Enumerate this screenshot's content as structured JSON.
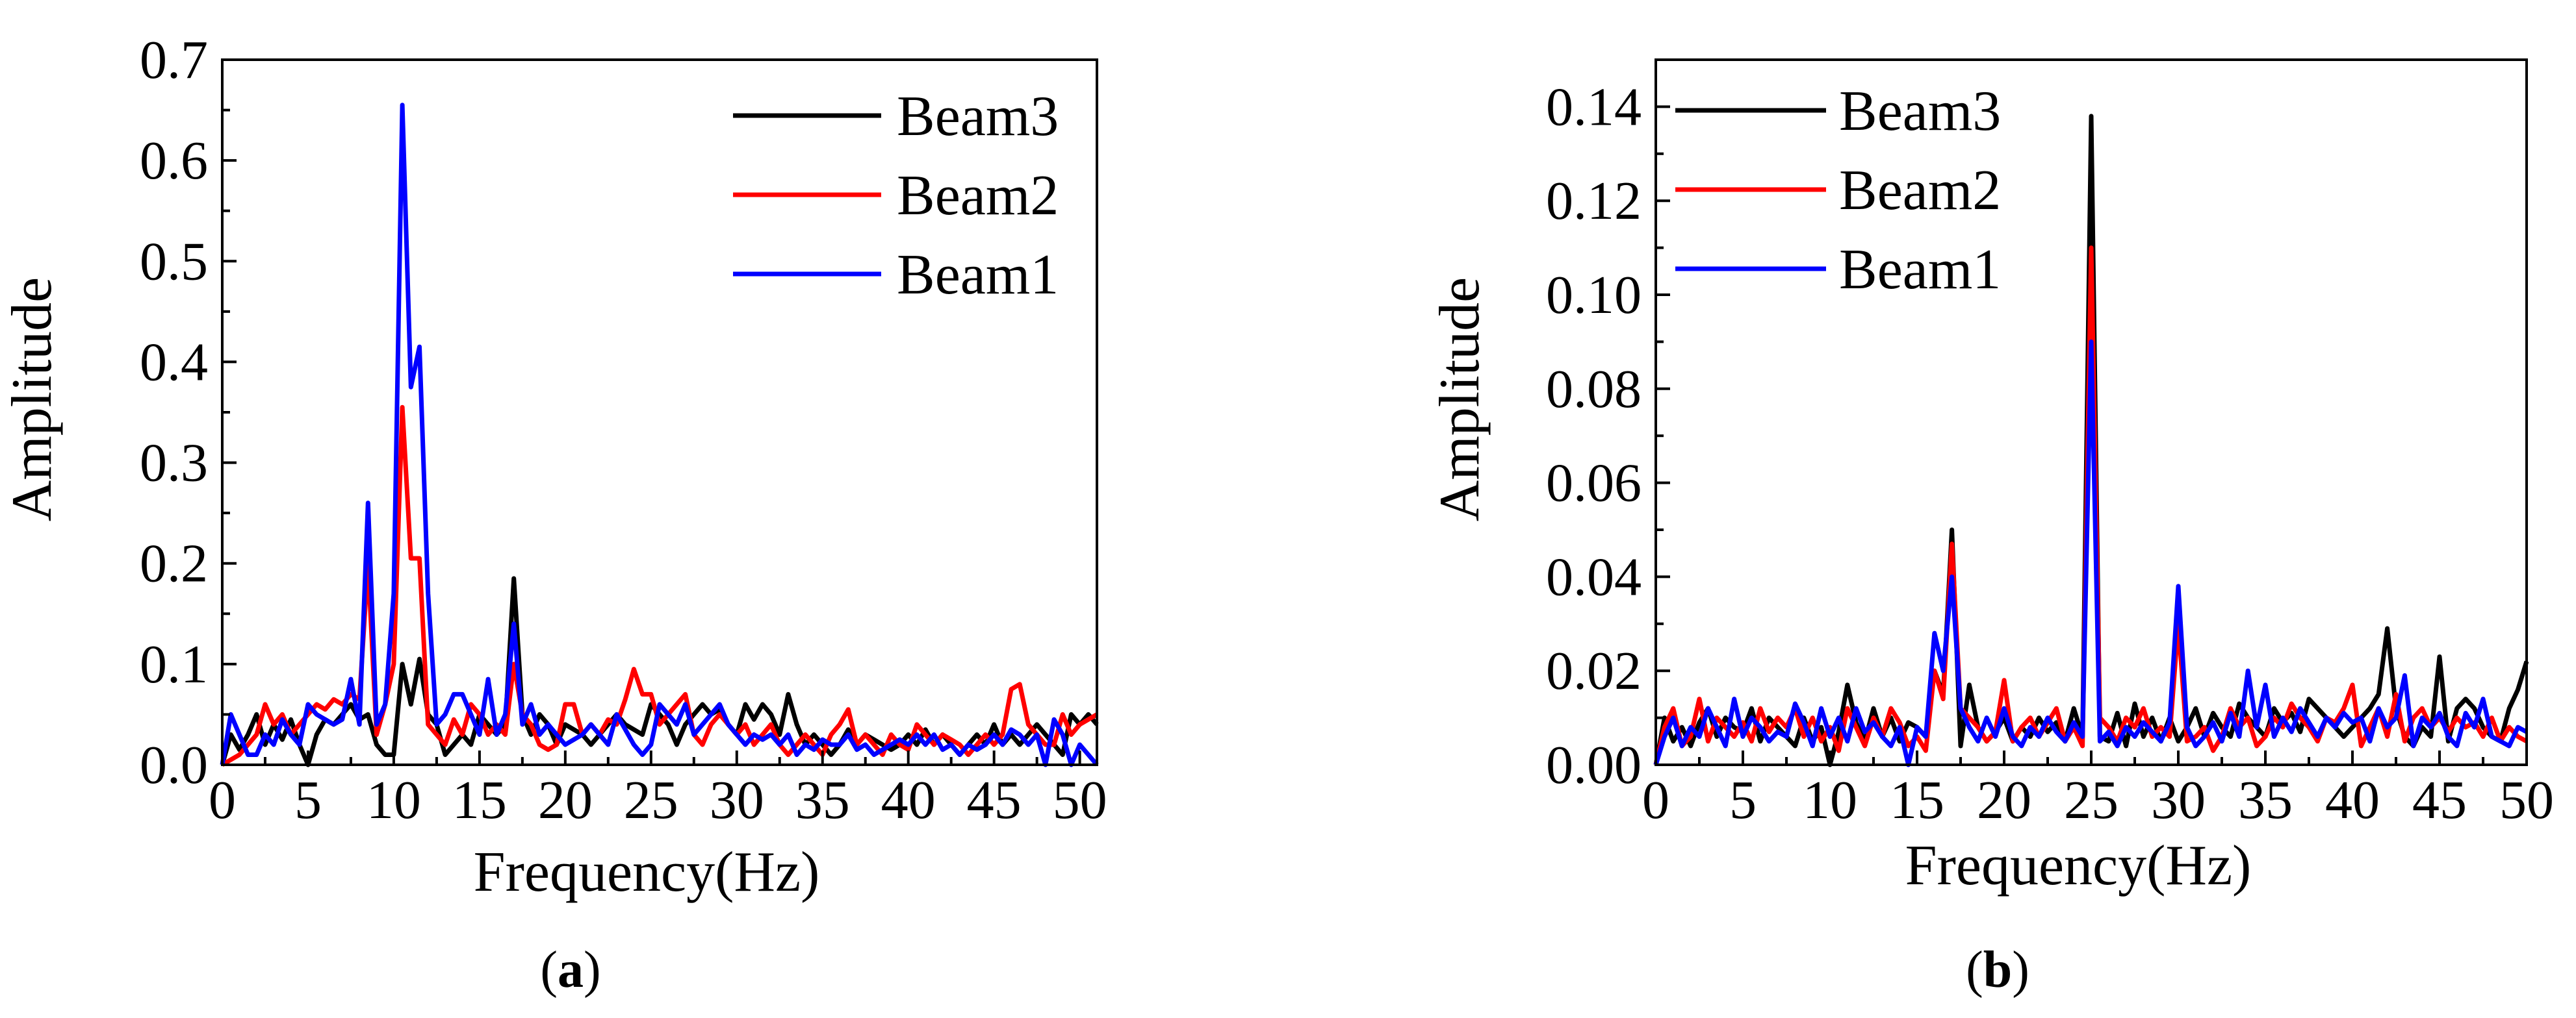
{
  "figure": {
    "panels": [
      {
        "caption_open": "(",
        "caption_letter": "a",
        "caption_close": ")"
      },
      {
        "caption_open": "(",
        "caption_letter": "b",
        "caption_close": ")"
      }
    ]
  },
  "chart_data": [
    {
      "type": "line",
      "panel": "a",
      "xlabel": "Frequency(Hz)",
      "ylabel": "Amplitude",
      "xlim": [
        0,
        51
      ],
      "ylim": [
        0,
        0.7
      ],
      "xticks": [
        0,
        5,
        10,
        15,
        20,
        25,
        30,
        35,
        40,
        45,
        50
      ],
      "yticks": [
        0.0,
        0.1,
        0.2,
        0.3,
        0.4,
        0.5,
        0.6,
        0.7
      ],
      "ytick_labels": [
        "0.0",
        "0.1",
        "0.2",
        "0.3",
        "0.4",
        "0.5",
        "0.6",
        "0.7"
      ],
      "legend_position": "top-right",
      "x": [
        0,
        0.5,
        1,
        1.5,
        2,
        2.5,
        3,
        3.5,
        4,
        4.5,
        5,
        5.5,
        6,
        6.5,
        7,
        7.5,
        8,
        8.5,
        9,
        9.5,
        10,
        10.5,
        11,
        11.5,
        12,
        12.5,
        13,
        13.5,
        14,
        14.5,
        15,
        15.5,
        16,
        16.5,
        17,
        17.5,
        18,
        18.5,
        19,
        19.5,
        20,
        20.5,
        21,
        21.5,
        22,
        22.5,
        23,
        23.5,
        24,
        24.5,
        25,
        25.5,
        26,
        26.5,
        27,
        27.5,
        28,
        28.5,
        29,
        29.5,
        30,
        30.5,
        31,
        31.5,
        32,
        32.5,
        33,
        33.5,
        34,
        34.5,
        35,
        35.5,
        36,
        36.5,
        37,
        37.5,
        38,
        38.5,
        39,
        39.5,
        40,
        40.5,
        41,
        41.5,
        42,
        42.5,
        43,
        43.5,
        44,
        44.5,
        45,
        45.5,
        46,
        46.5,
        47,
        47.5,
        48,
        48.5,
        49,
        49.5,
        50,
        50.5,
        51
      ],
      "series": [
        {
          "name": "Beam3",
          "color": "#000000",
          "values": [
            0.0,
            0.03,
            0.015,
            0.03,
            0.05,
            0.02,
            0.04,
            0.025,
            0.045,
            0.02,
            0.0,
            0.03,
            0.045,
            0.04,
            0.05,
            0.06,
            0.045,
            0.05,
            0.02,
            0.01,
            0.01,
            0.1,
            0.06,
            0.105,
            0.05,
            0.04,
            0.01,
            0.02,
            0.03,
            0.02,
            0.05,
            0.04,
            0.03,
            0.04,
            0.185,
            0.05,
            0.03,
            0.05,
            0.04,
            0.02,
            0.04,
            0.035,
            0.03,
            0.02,
            0.03,
            0.04,
            0.05,
            0.04,
            0.035,
            0.03,
            0.06,
            0.05,
            0.04,
            0.02,
            0.04,
            0.05,
            0.06,
            0.05,
            0.055,
            0.04,
            0.03,
            0.06,
            0.045,
            0.06,
            0.05,
            0.03,
            0.07,
            0.04,
            0.02,
            0.03,
            0.02,
            0.01,
            0.02,
            0.035,
            0.02,
            0.03,
            0.025,
            0.02,
            0.015,
            0.02,
            0.03,
            0.02,
            0.035,
            0.02,
            0.03,
            0.02,
            0.01,
            0.02,
            0.03,
            0.02,
            0.04,
            0.02,
            0.03,
            0.02,
            0.03,
            0.04,
            0.03,
            0.02,
            0.01,
            0.05,
            0.04,
            0.05,
            0.04
          ]
        },
        {
          "name": "Beam2",
          "color": "#ff0000",
          "values": [
            0.0,
            0.005,
            0.01,
            0.02,
            0.03,
            0.06,
            0.04,
            0.05,
            0.03,
            0.04,
            0.05,
            0.06,
            0.055,
            0.065,
            0.06,
            0.07,
            0.065,
            0.2,
            0.03,
            0.06,
            0.1,
            0.355,
            0.205,
            0.205,
            0.04,
            0.03,
            0.02,
            0.045,
            0.03,
            0.06,
            0.05,
            0.03,
            0.04,
            0.03,
            0.1,
            0.05,
            0.04,
            0.02,
            0.015,
            0.02,
            0.06,
            0.06,
            0.03,
            0.04,
            0.03,
            0.045,
            0.04,
            0.065,
            0.095,
            0.07,
            0.07,
            0.04,
            0.05,
            0.06,
            0.07,
            0.03,
            0.02,
            0.04,
            0.05,
            0.04,
            0.03,
            0.04,
            0.02,
            0.03,
            0.04,
            0.02,
            0.01,
            0.02,
            0.03,
            0.02,
            0.01,
            0.03,
            0.04,
            0.055,
            0.02,
            0.03,
            0.02,
            0.01,
            0.03,
            0.02,
            0.015,
            0.04,
            0.03,
            0.02,
            0.03,
            0.025,
            0.02,
            0.01,
            0.02,
            0.03,
            0.02,
            0.03,
            0.075,
            0.08,
            0.04,
            0.03,
            0.02,
            0.02,
            0.05,
            0.03,
            0.04,
            0.045,
            0.05
          ]
        },
        {
          "name": "Beam1",
          "color": "#0000ff",
          "values": [
            0.0,
            0.05,
            0.03,
            0.01,
            0.01,
            0.03,
            0.02,
            0.045,
            0.03,
            0.02,
            0.06,
            0.05,
            0.045,
            0.04,
            0.045,
            0.085,
            0.04,
            0.26,
            0.04,
            0.06,
            0.17,
            0.655,
            0.375,
            0.415,
            0.17,
            0.04,
            0.05,
            0.07,
            0.07,
            0.05,
            0.03,
            0.085,
            0.03,
            0.05,
            0.14,
            0.04,
            0.06,
            0.03,
            0.04,
            0.03,
            0.02,
            0.025,
            0.03,
            0.04,
            0.03,
            0.02,
            0.05,
            0.035,
            0.02,
            0.01,
            0.02,
            0.06,
            0.05,
            0.04,
            0.06,
            0.03,
            0.04,
            0.05,
            0.06,
            0.04,
            0.03,
            0.02,
            0.03,
            0.025,
            0.03,
            0.02,
            0.03,
            0.01,
            0.02,
            0.015,
            0.025,
            0.02,
            0.02,
            0.03,
            0.015,
            0.02,
            0.01,
            0.015,
            0.02,
            0.025,
            0.02,
            0.03,
            0.02,
            0.03,
            0.015,
            0.02,
            0.01,
            0.02,
            0.015,
            0.02,
            0.03,
            0.02,
            0.035,
            0.03,
            0.02,
            0.03,
            0.0,
            0.045,
            0.03,
            0.0,
            0.02,
            0.01,
            0.0
          ]
        }
      ]
    },
    {
      "type": "line",
      "panel": "b",
      "xlabel": "Frequency(Hz)",
      "ylabel": "Amplitude",
      "xlim": [
        0,
        50
      ],
      "ylim": [
        0,
        0.15
      ],
      "xticks": [
        0,
        5,
        10,
        15,
        20,
        25,
        30,
        35,
        40,
        45,
        50
      ],
      "yticks": [
        0.0,
        0.02,
        0.04,
        0.06,
        0.08,
        0.1,
        0.12,
        0.14
      ],
      "ytick_labels": [
        "0.00",
        "0.02",
        "0.04",
        "0.06",
        "0.08",
        "0.10",
        "0.12",
        "0.14"
      ],
      "legend_position": "top-left",
      "x": [
        0,
        0.5,
        1,
        1.5,
        2,
        2.5,
        3,
        3.5,
        4,
        4.5,
        5,
        5.5,
        6,
        6.5,
        7,
        7.5,
        8,
        8.5,
        9,
        9.5,
        10,
        10.5,
        11,
        11.5,
        12,
        12.5,
        13,
        13.5,
        14,
        14.5,
        15,
        15.5,
        16,
        16.5,
        17,
        17.5,
        18,
        18.5,
        19,
        19.5,
        20,
        20.5,
        21,
        21.5,
        22,
        22.5,
        23,
        23.5,
        24,
        24.5,
        25,
        25.5,
        26,
        26.5,
        27,
        27.5,
        28,
        28.5,
        29,
        29.5,
        30,
        30.5,
        31,
        31.5,
        32,
        32.5,
        33,
        33.5,
        34,
        34.5,
        35,
        35.5,
        36,
        36.5,
        37,
        37.5,
        38,
        38.5,
        39,
        39.5,
        40,
        40.5,
        41,
        41.5,
        42,
        42.5,
        43,
        43.5,
        44,
        44.5,
        45,
        45.5,
        46,
        46.5,
        47,
        47.5,
        48,
        48.5,
        49,
        49.5,
        50
      ],
      "series": [
        {
          "name": "Beam3",
          "color": "#000000",
          "values": [
            0.0,
            0.01,
            0.005,
            0.008,
            0.004,
            0.009,
            0.012,
            0.006,
            0.01,
            0.008,
            0.007,
            0.012,
            0.005,
            0.01,
            0.008,
            0.006,
            0.004,
            0.01,
            0.005,
            0.008,
            0.0,
            0.007,
            0.017,
            0.009,
            0.005,
            0.012,
            0.006,
            0.01,
            0.005,
            0.009,
            0.008,
            0.006,
            0.02,
            0.015,
            0.05,
            0.004,
            0.017,
            0.008,
            0.005,
            0.007,
            0.01,
            0.005,
            0.008,
            0.006,
            0.01,
            0.007,
            0.009,
            0.005,
            0.012,
            0.006,
            0.138,
            0.006,
            0.005,
            0.011,
            0.004,
            0.013,
            0.006,
            0.01,
            0.005,
            0.01,
            0.005,
            0.008,
            0.012,
            0.006,
            0.011,
            0.008,
            0.006,
            0.013,
            0.01,
            0.008,
            0.006,
            0.012,
            0.009,
            0.011,
            0.007,
            0.014,
            0.012,
            0.01,
            0.008,
            0.006,
            0.008,
            0.01,
            0.012,
            0.015,
            0.029,
            0.012,
            0.006,
            0.004,
            0.008,
            0.006,
            0.023,
            0.005,
            0.012,
            0.014,
            0.012,
            0.008,
            0.006,
            0.005,
            0.012,
            0.016,
            0.022
          ]
        },
        {
          "name": "Beam2",
          "color": "#ff0000",
          "values": [
            0.0,
            0.008,
            0.012,
            0.004,
            0.006,
            0.014,
            0.005,
            0.01,
            0.008,
            0.006,
            0.009,
            0.005,
            0.012,
            0.007,
            0.01,
            0.008,
            0.012,
            0.006,
            0.01,
            0.005,
            0.008,
            0.003,
            0.012,
            0.008,
            0.004,
            0.01,
            0.006,
            0.012,
            0.009,
            0.004,
            0.006,
            0.003,
            0.02,
            0.014,
            0.047,
            0.012,
            0.01,
            0.008,
            0.005,
            0.007,
            0.018,
            0.005,
            0.008,
            0.01,
            0.006,
            0.009,
            0.012,
            0.005,
            0.008,
            0.004,
            0.11,
            0.01,
            0.008,
            0.005,
            0.01,
            0.008,
            0.012,
            0.006,
            0.008,
            0.006,
            0.03,
            0.005,
            0.006,
            0.008,
            0.003,
            0.006,
            0.012,
            0.008,
            0.01,
            0.004,
            0.006,
            0.01,
            0.008,
            0.013,
            0.01,
            0.008,
            0.005,
            0.01,
            0.009,
            0.012,
            0.017,
            0.004,
            0.008,
            0.012,
            0.006,
            0.015,
            0.005,
            0.01,
            0.012,
            0.008,
            0.01,
            0.007,
            0.01,
            0.008,
            0.009,
            0.006,
            0.01,
            0.005,
            0.008,
            0.006,
            0.005
          ]
        },
        {
          "name": "Beam1",
          "color": "#0000ff",
          "values": [
            0.0,
            0.006,
            0.01,
            0.004,
            0.008,
            0.006,
            0.012,
            0.008,
            0.004,
            0.014,
            0.006,
            0.01,
            0.008,
            0.005,
            0.007,
            0.006,
            0.013,
            0.009,
            0.004,
            0.012,
            0.006,
            0.01,
            0.005,
            0.012,
            0.007,
            0.009,
            0.006,
            0.004,
            0.008,
            0.0,
            0.008,
            0.006,
            0.028,
            0.02,
            0.04,
            0.012,
            0.008,
            0.005,
            0.01,
            0.006,
            0.012,
            0.006,
            0.004,
            0.008,
            0.006,
            0.01,
            0.007,
            0.005,
            0.009,
            0.006,
            0.09,
            0.005,
            0.007,
            0.004,
            0.008,
            0.006,
            0.009,
            0.007,
            0.005,
            0.009,
            0.038,
            0.008,
            0.004,
            0.006,
            0.009,
            0.005,
            0.011,
            0.006,
            0.02,
            0.008,
            0.017,
            0.006,
            0.01,
            0.007,
            0.012,
            0.009,
            0.006,
            0.01,
            0.008,
            0.011,
            0.009,
            0.01,
            0.005,
            0.012,
            0.008,
            0.01,
            0.019,
            0.004,
            0.01,
            0.008,
            0.011,
            0.006,
            0.004,
            0.011,
            0.008,
            0.014,
            0.006,
            0.005,
            0.004,
            0.008,
            0.007
          ]
        }
      ]
    }
  ]
}
